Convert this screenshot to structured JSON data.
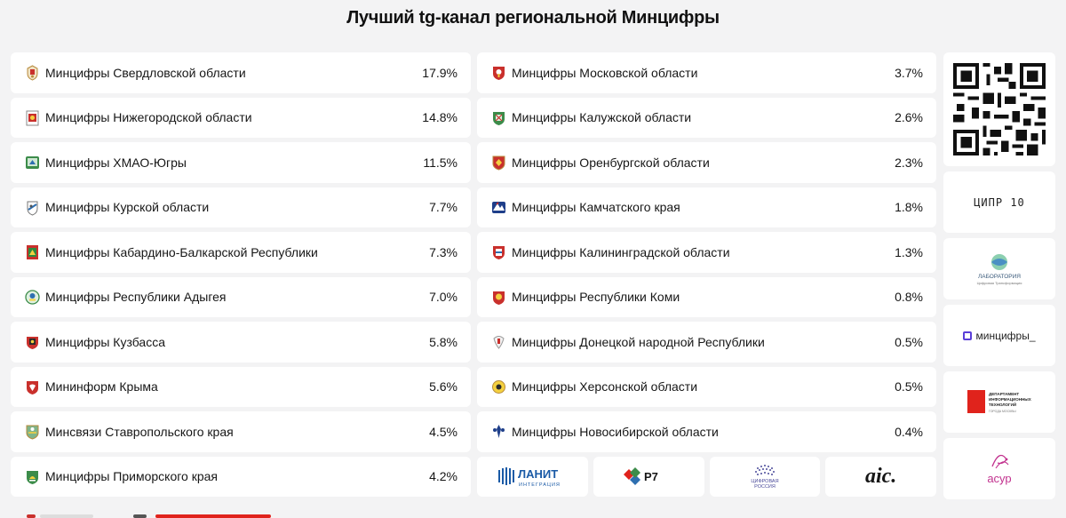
{
  "title": "Лучший tg-канал региональной Минцифры",
  "left_column": [
    {
      "name": "Минцифры Свердловской области",
      "pct": "17.9%",
      "emblem": "sverdlovsk-emblem"
    },
    {
      "name": "Минцифры Нижегородской области",
      "pct": "14.8%",
      "emblem": "nizhny-novgorod-emblem"
    },
    {
      "name": "Минцифры ХМАО-Югры",
      "pct": "11.5%",
      "emblem": "khmao-emblem"
    },
    {
      "name": "Минцифры Курской области",
      "pct": "7.7%",
      "emblem": "kursk-emblem"
    },
    {
      "name": "Минцифры Кабардино-Балкарской Республики",
      "pct": "7.3%",
      "emblem": "kbr-emblem"
    },
    {
      "name": "Минцифры Республики Адыгея",
      "pct": "7.0%",
      "emblem": "adygea-emblem"
    },
    {
      "name": "Минцифры Кузбасса",
      "pct": "5.8%",
      "emblem": "kuzbass-emblem"
    },
    {
      "name": "Мининформ Крыма",
      "pct": "5.6%",
      "emblem": "crimea-emblem"
    },
    {
      "name": "Минсвязи Ставропольского края",
      "pct": "4.5%",
      "emblem": "stavropol-emblem"
    },
    {
      "name": "Минцифры Приморского края",
      "pct": "4.2%",
      "emblem": "primorye-emblem"
    }
  ],
  "middle_column": [
    {
      "name": "Минцифры Московской области",
      "pct": "3.7%",
      "emblem": "moscow-oblast-emblem"
    },
    {
      "name": "Минцифры Калужской области",
      "pct": "2.6%",
      "emblem": "kaluga-emblem"
    },
    {
      "name": "Минцифры Оренбургской области",
      "pct": "2.3%",
      "emblem": "orenburg-emblem"
    },
    {
      "name": "Минцифры Камчатского края",
      "pct": "1.8%",
      "emblem": "kamchatka-emblem"
    },
    {
      "name": "Минцифры Калининградской области",
      "pct": "1.3%",
      "emblem": "kaliningrad-emblem"
    },
    {
      "name": "Минцифры Республики Коми",
      "pct": "0.8%",
      "emblem": "komi-emblem"
    },
    {
      "name": "Минцифры Донецкой народной Республики",
      "pct": "0.5%",
      "emblem": "dnr-emblem"
    },
    {
      "name": "Минцифры Херсонской области",
      "pct": "0.5%",
      "emblem": "kherson-emblem"
    },
    {
      "name": "Минцифры Новосибирской области",
      "pct": "0.4%",
      "emblem": "novosibirsk-emblem"
    }
  ],
  "sponsors_bottom": {
    "lanit": {
      "main": "ЛАНИТ",
      "sub": "ИНТЕГРАЦИЯ"
    },
    "r7": {
      "main": "Р7"
    },
    "cifrovaya": {
      "line1": "ЦИФРОВАЯ",
      "line2": "РОССИЯ"
    },
    "aic": {
      "main": "aic."
    }
  },
  "sponsors_side": {
    "cipr": {
      "main": "ЦИПР 10"
    },
    "lab": {
      "line1": "ЛАБОРАТОРИЯ",
      "line2": "Цифровая Трансформация"
    },
    "mincifry": {
      "main": "минцифры_"
    },
    "dit": {
      "line1": "ДЕПАРТАМЕНТ",
      "line2": "ИНФОРМАЦИОННЫХ",
      "line3": "ТЕХНОЛОГИЙ",
      "line4": "ГОРОДА МОСКВЫ"
    },
    "asur": {
      "main": "асур"
    }
  },
  "colors": {
    "background": "#f3f3f4",
    "card": "#ffffff",
    "text": "#161616",
    "lanit_blue": "#1a5aa6",
    "asur_pink": "#c2338f",
    "dit_red": "#e0231c"
  }
}
